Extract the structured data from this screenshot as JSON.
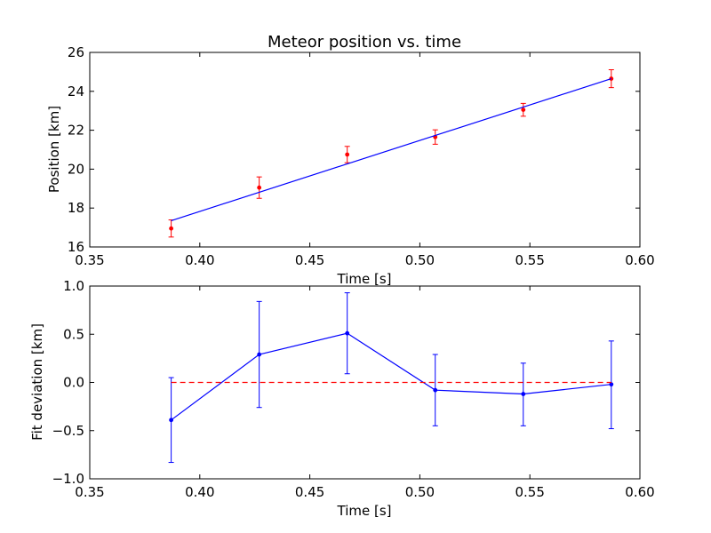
{
  "chart_data": [
    {
      "type": "line",
      "title": "Meteor position vs. time",
      "xlabel": "Time [s]",
      "ylabel": "Position [km]",
      "xlim": [
        0.35,
        0.6
      ],
      "ylim": [
        16,
        26
      ],
      "xticks": [
        "0.35",
        "0.40",
        "0.45",
        "0.50",
        "0.55",
        "0.60"
      ],
      "yticks": [
        "16",
        "18",
        "20",
        "22",
        "24",
        "26"
      ],
      "xtick_values": [
        0.35,
        0.4,
        0.45,
        0.5,
        0.55,
        0.6
      ],
      "ytick_values": [
        16,
        18,
        20,
        22,
        24,
        26
      ],
      "series": [
        {
          "kind": "errorbar",
          "color": "#ff0000",
          "x": [
            0.387,
            0.427,
            0.467,
            0.507,
            0.547,
            0.587
          ],
          "y": [
            16.95,
            19.05,
            20.75,
            21.65,
            23.05,
            24.65
          ],
          "yerr": [
            0.44,
            0.55,
            0.42,
            0.37,
            0.33,
            0.46
          ]
        },
        {
          "kind": "line",
          "color": "#0000ff",
          "x": [
            0.387,
            0.587
          ],
          "y": [
            17.35,
            24.65
          ]
        }
      ]
    },
    {
      "type": "line",
      "title": "",
      "xlabel": "Time [s]",
      "ylabel": "Fit deviation [km]",
      "xlim": [
        0.35,
        0.6
      ],
      "ylim": [
        -1.0,
        1.0
      ],
      "xticks": [
        "0.35",
        "0.40",
        "0.45",
        "0.50",
        "0.55",
        "0.60"
      ],
      "yticks": [
        "−1.0",
        "−0.5",
        "0.0",
        "0.5",
        "1.0"
      ],
      "xtick_values": [
        0.35,
        0.4,
        0.45,
        0.5,
        0.55,
        0.6
      ],
      "ytick_values": [
        -1.0,
        -0.5,
        0.0,
        0.5,
        1.0
      ],
      "series": [
        {
          "kind": "errorbar-line",
          "color": "#0000ff",
          "x": [
            0.387,
            0.427,
            0.467,
            0.507,
            0.547,
            0.587
          ],
          "y": [
            -0.39,
            0.29,
            0.51,
            -0.08,
            -0.12,
            -0.02
          ],
          "yerr_low": [
            0.44,
            0.55,
            0.42,
            0.37,
            0.33,
            0.46
          ],
          "yerr_high": [
            0.44,
            0.55,
            0.42,
            0.37,
            0.32,
            0.45
          ]
        },
        {
          "kind": "dashed-line",
          "color": "#ff0000",
          "x": [
            0.387,
            0.587
          ],
          "y": [
            0.0,
            0.0
          ]
        }
      ]
    }
  ]
}
